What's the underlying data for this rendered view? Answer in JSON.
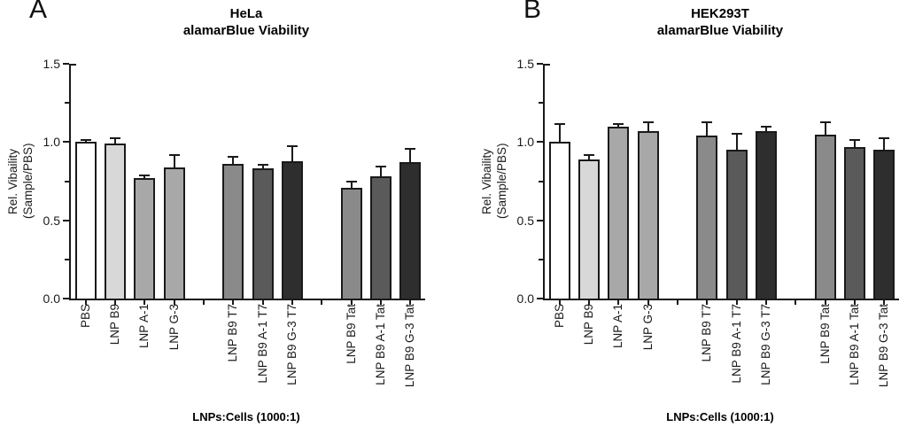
{
  "figure": {
    "background_color": "#ffffff",
    "axis_color": "#1a1a1a"
  },
  "chart_data": [
    {
      "type": "bar",
      "panel_letter": "A",
      "title_line1": "HeLa",
      "title_line2": "alamarBlue Viability",
      "ylabel_line1": "Rel. Vibaility",
      "ylabel_line2": "(Sample/PBS)",
      "xlabel": "LNPs:Cells (1000:1)",
      "ylim": [
        0,
        1.5
      ],
      "yticks_major": [
        0,
        0.5,
        1.0,
        1.5
      ],
      "ytick_labels": [
        "0.0",
        "0.5",
        "1.0",
        "1.5"
      ],
      "yticks_minor": [
        0.25,
        0.75,
        1.25
      ],
      "grid": false,
      "legend": "none",
      "categories": [
        "PBS",
        "LNP B9",
        "LNP A-1",
        "LNP G-3",
        "LNP B9 T7",
        "LNP B9 A-1 T7",
        "LNP B9 G-3 T7",
        "LNP B9 Tat",
        "LNP B9 A-1 Tat",
        "LNP B9 G-3 Tat"
      ],
      "values": [
        1.0,
        0.99,
        0.77,
        0.84,
        0.86,
        0.83,
        0.88,
        0.71,
        0.78,
        0.87
      ],
      "errors": [
        0.01,
        0.03,
        0.01,
        0.07,
        0.04,
        0.02,
        0.09,
        0.03,
        0.06,
        0.08
      ],
      "error_bar_direction": "upper",
      "bar_colors": [
        "#ffffff",
        "#d8d8d8",
        "#a8a8a8",
        "#a8a8a8",
        "#8a8a8a",
        "#5a5a5a",
        "#2e2e2e",
        "#8a8a8a",
        "#5a5a5a",
        "#2e2e2e"
      ],
      "bar_slots": [
        0,
        1,
        2,
        3,
        5,
        6,
        7,
        9,
        10,
        11
      ],
      "n_slots": 12
    },
    {
      "type": "bar",
      "panel_letter": "B",
      "title_line1": "HEK293T",
      "title_line2": "alamarBlue Viability",
      "ylabel_line1": "Rel. Vibaility",
      "ylabel_line2": "(Sample/PBS)",
      "xlabel": "LNPs:Cells (1000:1)",
      "ylim": [
        0,
        1.5
      ],
      "yticks_major": [
        0,
        0.5,
        1.0,
        1.5
      ],
      "ytick_labels": [
        "0.0",
        "0.5",
        "1.0",
        "1.5"
      ],
      "yticks_minor": [
        0.25,
        0.75,
        1.25
      ],
      "grid": false,
      "legend": "none",
      "categories": [
        "PBS",
        "LNP B9",
        "LNP A-1",
        "LNP G-3",
        "LNP B9 T7",
        "LNP B9 A-1 T7",
        "LNP B9 G-3 T7",
        "LNP B9 Tat",
        "LNP B9 A-1 Tat",
        "LNP B9 G-3 Tat"
      ],
      "values": [
        1.0,
        0.89,
        1.1,
        1.07,
        1.04,
        0.95,
        1.07,
        1.05,
        0.97,
        0.95
      ],
      "errors": [
        0.11,
        0.02,
        0.01,
        0.05,
        0.08,
        0.1,
        0.02,
        0.07,
        0.04,
        0.07
      ],
      "error_bar_direction": "upper",
      "bar_colors": [
        "#ffffff",
        "#d8d8d8",
        "#a8a8a8",
        "#a8a8a8",
        "#8a8a8a",
        "#5a5a5a",
        "#2e2e2e",
        "#8a8a8a",
        "#5a5a5a",
        "#2e2e2e"
      ],
      "bar_slots": [
        0,
        1,
        2,
        3,
        5,
        6,
        7,
        9,
        10,
        11
      ],
      "n_slots": 12
    }
  ]
}
